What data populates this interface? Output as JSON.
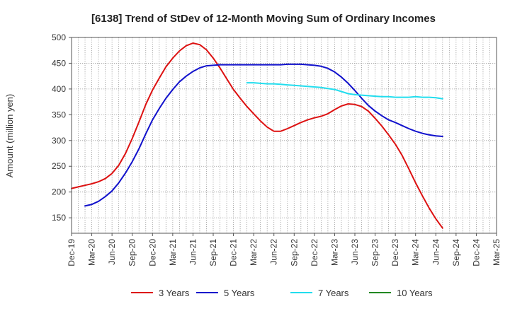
{
  "chart_data": {
    "type": "line",
    "title": "[6138]  Trend of StDev of 12-Month Moving Sum of Ordinary Incomes",
    "xlabel": "",
    "ylabel": "Amount (million yen)",
    "ylim": [
      120,
      500
    ],
    "yticks": [
      150,
      200,
      250,
      300,
      350,
      400,
      450,
      500
    ],
    "x_index_range": [
      0,
      63
    ],
    "x_tick_labels": [
      "Dec-19",
      "Mar-20",
      "Jun-20",
      "Sep-20",
      "Dec-20",
      "Mar-21",
      "Jun-21",
      "Sep-21",
      "Dec-21",
      "Mar-22",
      "Jun-22",
      "Sep-22",
      "Dec-22",
      "Mar-23",
      "Jun-23",
      "Sep-23",
      "Dec-23",
      "Mar-24",
      "Jun-24",
      "Sep-24",
      "Dec-24",
      "Mar-25"
    ],
    "grid": true,
    "legend_position": "bottom",
    "series": [
      {
        "name": "3 Years",
        "color": "#dd1111",
        "points": [
          [
            0,
            207
          ],
          [
            1,
            210
          ],
          [
            2,
            213
          ],
          [
            3,
            216
          ],
          [
            4,
            220
          ],
          [
            5,
            226
          ],
          [
            6,
            236
          ],
          [
            7,
            252
          ],
          [
            8,
            275
          ],
          [
            9,
            304
          ],
          [
            10,
            336
          ],
          [
            11,
            370
          ],
          [
            12,
            398
          ],
          [
            13,
            421
          ],
          [
            14,
            443
          ],
          [
            15,
            460
          ],
          [
            16,
            474
          ],
          [
            17,
            484
          ],
          [
            18,
            489
          ],
          [
            19,
            486
          ],
          [
            20,
            476
          ],
          [
            21,
            460
          ],
          [
            22,
            441
          ],
          [
            23,
            420
          ],
          [
            24,
            399
          ],
          [
            25,
            382
          ],
          [
            26,
            366
          ],
          [
            27,
            352
          ],
          [
            28,
            338
          ],
          [
            29,
            326
          ],
          [
            30,
            318
          ],
          [
            31,
            318
          ],
          [
            32,
            323
          ],
          [
            33,
            329
          ],
          [
            34,
            335
          ],
          [
            35,
            340
          ],
          [
            36,
            344
          ],
          [
            37,
            347
          ],
          [
            38,
            352
          ],
          [
            39,
            360
          ],
          [
            40,
            367
          ],
          [
            41,
            371
          ],
          [
            42,
            370
          ],
          [
            43,
            366
          ],
          [
            44,
            357
          ],
          [
            45,
            343
          ],
          [
            46,
            328
          ],
          [
            47,
            311
          ],
          [
            48,
            293
          ],
          [
            49,
            271
          ],
          [
            50,
            245
          ],
          [
            51,
            218
          ],
          [
            52,
            193
          ],
          [
            53,
            169
          ],
          [
            54,
            148
          ],
          [
            55,
            130
          ]
        ]
      },
      {
        "name": "5 Years",
        "color": "#1111cc",
        "points": [
          [
            2,
            173
          ],
          [
            3,
            176
          ],
          [
            4,
            182
          ],
          [
            5,
            191
          ],
          [
            6,
            202
          ],
          [
            7,
            218
          ],
          [
            8,
            237
          ],
          [
            9,
            259
          ],
          [
            10,
            284
          ],
          [
            11,
            313
          ],
          [
            12,
            340
          ],
          [
            13,
            362
          ],
          [
            14,
            382
          ],
          [
            15,
            399
          ],
          [
            16,
            414
          ],
          [
            17,
            425
          ],
          [
            18,
            434
          ],
          [
            19,
            441
          ],
          [
            20,
            445
          ],
          [
            21,
            446
          ],
          [
            22,
            447
          ],
          [
            23,
            447
          ],
          [
            24,
            447
          ],
          [
            25,
            447
          ],
          [
            26,
            447
          ],
          [
            27,
            447
          ],
          [
            28,
            447
          ],
          [
            29,
            447
          ],
          [
            30,
            447
          ],
          [
            31,
            447
          ],
          [
            32,
            448
          ],
          [
            33,
            448
          ],
          [
            34,
            448
          ],
          [
            35,
            447
          ],
          [
            36,
            446
          ],
          [
            37,
            444
          ],
          [
            38,
            440
          ],
          [
            39,
            433
          ],
          [
            40,
            423
          ],
          [
            41,
            411
          ],
          [
            42,
            397
          ],
          [
            43,
            382
          ],
          [
            44,
            368
          ],
          [
            45,
            357
          ],
          [
            46,
            348
          ],
          [
            47,
            340
          ],
          [
            48,
            335
          ],
          [
            49,
            329
          ],
          [
            50,
            323
          ],
          [
            51,
            318
          ],
          [
            52,
            314
          ],
          [
            53,
            311
          ],
          [
            54,
            309
          ],
          [
            55,
            308
          ]
        ]
      },
      {
        "name": "7 Years",
        "color": "#22ddee",
        "points": [
          [
            26,
            412
          ],
          [
            27,
            412
          ],
          [
            28,
            411
          ],
          [
            29,
            410
          ],
          [
            30,
            410
          ],
          [
            31,
            409
          ],
          [
            32,
            408
          ],
          [
            33,
            407
          ],
          [
            34,
            406
          ],
          [
            35,
            405
          ],
          [
            36,
            404
          ],
          [
            37,
            403
          ],
          [
            38,
            401
          ],
          [
            39,
            399
          ],
          [
            40,
            395
          ],
          [
            41,
            391
          ],
          [
            42,
            389
          ],
          [
            43,
            388
          ],
          [
            44,
            387
          ],
          [
            45,
            386
          ],
          [
            46,
            385
          ],
          [
            47,
            385
          ],
          [
            48,
            384
          ],
          [
            49,
            384
          ],
          [
            50,
            384
          ],
          [
            51,
            385
          ],
          [
            52,
            384
          ],
          [
            53,
            384
          ],
          [
            54,
            383
          ],
          [
            55,
            381
          ]
        ]
      },
      {
        "name": "10 Years",
        "color": "#228822",
        "points": []
      }
    ]
  }
}
